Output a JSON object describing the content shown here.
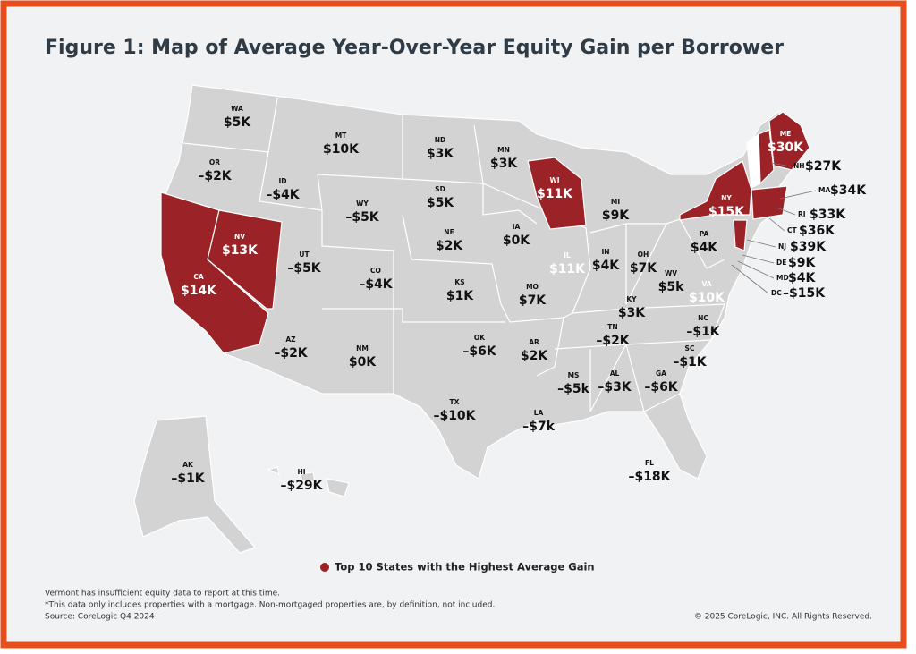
{
  "header": {
    "title": "Figure 1: Map of Average Year-Over-Year Equity Gain per Borrower"
  },
  "states": [
    {
      "abbr": "WA",
      "label": "$5K",
      "highlight": false
    },
    {
      "abbr": "OR",
      "label": "–$2K",
      "highlight": false
    },
    {
      "abbr": "ID",
      "label": "–$4K",
      "highlight": false
    },
    {
      "abbr": "MT",
      "label": "$10K",
      "highlight": false
    },
    {
      "abbr": "WY",
      "label": "–$5K",
      "highlight": false
    },
    {
      "abbr": "ND",
      "label": "$3K",
      "highlight": false
    },
    {
      "abbr": "SD",
      "label": "$5K",
      "highlight": false
    },
    {
      "abbr": "MN",
      "label": "$3K",
      "highlight": false
    },
    {
      "abbr": "WI",
      "label": "$11K",
      "highlight": true
    },
    {
      "abbr": "MI",
      "label": "$9K",
      "highlight": false
    },
    {
      "abbr": "NV",
      "label": "$13K",
      "highlight": true
    },
    {
      "abbr": "CA",
      "label": "$14K",
      "highlight": true
    },
    {
      "abbr": "UT",
      "label": "–$5K",
      "highlight": false
    },
    {
      "abbr": "CO",
      "label": "–$4K",
      "highlight": false
    },
    {
      "abbr": "NE",
      "label": "$2K",
      "highlight": false
    },
    {
      "abbr": "IA",
      "label": "$0K",
      "highlight": false
    },
    {
      "abbr": "KS",
      "label": "$1K",
      "highlight": false
    },
    {
      "abbr": "MO",
      "label": "$7K",
      "highlight": false
    },
    {
      "abbr": "IL",
      "label": "$11K",
      "highlight": false,
      "light_label": true
    },
    {
      "abbr": "IN",
      "label": "$4K",
      "highlight": false
    },
    {
      "abbr": "OH",
      "label": "$7K",
      "highlight": false
    },
    {
      "abbr": "KY",
      "label": "$3K",
      "highlight": false
    },
    {
      "abbr": "WV",
      "label": "$5k",
      "highlight": false
    },
    {
      "abbr": "VA",
      "label": "$10K",
      "highlight": false,
      "light_label": true
    },
    {
      "abbr": "PA",
      "label": "$4K",
      "highlight": false
    },
    {
      "abbr": "NY",
      "label": "$15K",
      "highlight": true
    },
    {
      "abbr": "ME",
      "label": "$30K",
      "highlight": true
    },
    {
      "abbr": "AZ",
      "label": "–$2K",
      "highlight": false
    },
    {
      "abbr": "NM",
      "label": "$0K",
      "highlight": false
    },
    {
      "abbr": "OK",
      "label": "–$6K",
      "highlight": false
    },
    {
      "abbr": "AR",
      "label": "$2K",
      "highlight": false
    },
    {
      "abbr": "TN",
      "label": "–$2K",
      "highlight": false
    },
    {
      "abbr": "NC",
      "label": "–$1K",
      "highlight": false
    },
    {
      "abbr": "SC",
      "label": "–$1K",
      "highlight": false
    },
    {
      "abbr": "GA",
      "label": "–$6K",
      "highlight": false
    },
    {
      "abbr": "AL",
      "label": "–$3K",
      "highlight": false
    },
    {
      "abbr": "MS",
      "label": "–$5k",
      "highlight": false
    },
    {
      "abbr": "LA",
      "label": "–$7k",
      "highlight": false
    },
    {
      "abbr": "TX",
      "label": "–$10K",
      "highlight": false
    },
    {
      "abbr": "FL",
      "label": "–$18K",
      "highlight": false
    },
    {
      "abbr": "AK",
      "label": "–$1K",
      "highlight": false
    },
    {
      "abbr": "HI",
      "label": "–$29K",
      "highlight": false
    }
  ],
  "callouts": [
    {
      "abbr": "NH",
      "label": "$27K"
    },
    {
      "abbr": "MA",
      "label": "$34K"
    },
    {
      "abbr": "RI",
      "label": "$33K"
    },
    {
      "abbr": "CT",
      "label": "$36K"
    },
    {
      "abbr": "NJ",
      "label": "$39K"
    },
    {
      "abbr": "DE",
      "label": "$9K"
    },
    {
      "abbr": "MD",
      "label": "$4K"
    },
    {
      "abbr": "DC",
      "label": "–$15K"
    }
  ],
  "legend": {
    "label": "Top 10 States with the Highest Average Gain",
    "color": "#9b2226"
  },
  "footnotes": [
    "Vermont has insufficient equity data to report at this time.",
    "*This data only includes properties with a mortgage. Non-mortgaged properties are, by definition, not included.",
    "Source: CoreLogic Q4 2024"
  ],
  "copyright": "© 2025 CoreLogic, INC. All Rights Reserved."
}
